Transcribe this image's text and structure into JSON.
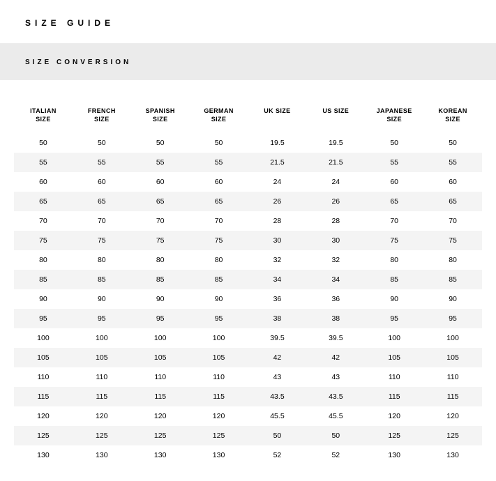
{
  "page": {
    "title": "SIZE GUIDE",
    "subtitle": "SIZE CONVERSION"
  },
  "table": {
    "type": "table",
    "background_color": "#ffffff",
    "stripe_color": "#f4f4f4",
    "header_fontsize": 9,
    "cell_fontsize": 10.5,
    "text_color": "#000000",
    "columns": [
      "ITALIAN\nSIZE",
      "FRENCH\nSIZE",
      "SPANISH\nSIZE",
      "GERMAN\nSIZE",
      "UK SIZE",
      "US SIZE",
      "JAPANESE\nSIZE",
      "KOREAN\nSIZE"
    ],
    "rows": [
      [
        "50",
        "50",
        "50",
        "50",
        "19.5",
        "19.5",
        "50",
        "50"
      ],
      [
        "55",
        "55",
        "55",
        "55",
        "21.5",
        "21.5",
        "55",
        "55"
      ],
      [
        "60",
        "60",
        "60",
        "60",
        "24",
        "24",
        "60",
        "60"
      ],
      [
        "65",
        "65",
        "65",
        "65",
        "26",
        "26",
        "65",
        "65"
      ],
      [
        "70",
        "70",
        "70",
        "70",
        "28",
        "28",
        "70",
        "70"
      ],
      [
        "75",
        "75",
        "75",
        "75",
        "30",
        "30",
        "75",
        "75"
      ],
      [
        "80",
        "80",
        "80",
        "80",
        "32",
        "32",
        "80",
        "80"
      ],
      [
        "85",
        "85",
        "85",
        "85",
        "34",
        "34",
        "85",
        "85"
      ],
      [
        "90",
        "90",
        "90",
        "90",
        "36",
        "36",
        "90",
        "90"
      ],
      [
        "95",
        "95",
        "95",
        "95",
        "38",
        "38",
        "95",
        "95"
      ],
      [
        "100",
        "100",
        "100",
        "100",
        "39.5",
        "39.5",
        "100",
        "100"
      ],
      [
        "105",
        "105",
        "105",
        "105",
        "42",
        "42",
        "105",
        "105"
      ],
      [
        "110",
        "110",
        "110",
        "110",
        "43",
        "43",
        "110",
        "110"
      ],
      [
        "115",
        "115",
        "115",
        "115",
        "43.5",
        "43.5",
        "115",
        "115"
      ],
      [
        "120",
        "120",
        "120",
        "120",
        "45.5",
        "45.5",
        "120",
        "120"
      ],
      [
        "125",
        "125",
        "125",
        "125",
        "50",
        "50",
        "125",
        "125"
      ],
      [
        "130",
        "130",
        "130",
        "130",
        "52",
        "52",
        "130",
        "130"
      ]
    ]
  }
}
